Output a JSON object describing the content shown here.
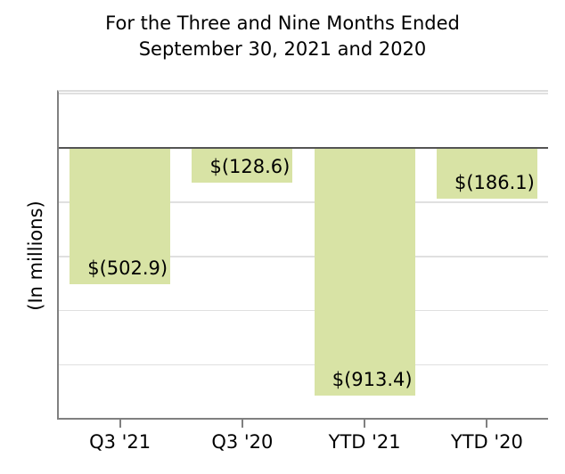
{
  "title": {
    "line1": "For the Three and Nine Months Ended",
    "line2": "September 30, 2021 and 2020"
  },
  "chart_data": {
    "type": "bar",
    "title": "For the Three and Nine Months Ended September 30, 2021 and 2020",
    "title_lines": [
      "For the Three and Nine Months Ended",
      "September 30, 2021 and 2020"
    ],
    "categories": [
      "Q3 '21",
      "Q3 '20",
      "YTD '21",
      "YTD '20"
    ],
    "values": [
      -502.9,
      -128.6,
      -913.4,
      -186.1
    ],
    "value_labels": [
      "$(502.9)",
      "$(128.6)",
      "$(913.4)",
      "$(186.1)"
    ],
    "xlabel": "",
    "ylabel": "(In millions)",
    "ylim": [
      -1000,
      200
    ],
    "gridline_values": [
      200,
      -200,
      -400,
      -600,
      -800
    ],
    "grid": "on",
    "legend": "none",
    "bar_orientation": "vertical",
    "label_position": "inside-bottom-right"
  },
  "colors": {
    "bar_fill": "#d8e3a5",
    "zero_line": "#545454",
    "axis": "#808080",
    "gridline": "#e0e0e0",
    "top_spine": "#dcdcdc",
    "text": "#000000",
    "background": "#ffffff"
  }
}
